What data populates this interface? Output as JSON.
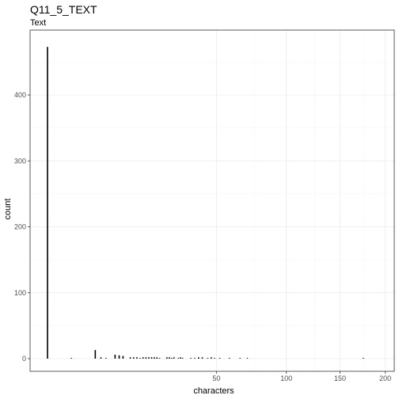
{
  "chart_data": {
    "type": "bar",
    "title": "Q11_5_TEXT",
    "subtitle": "Text",
    "xlabel": "characters",
    "ylabel": "count",
    "x_scale": "sqrt",
    "xlim": [
      0,
      205
    ],
    "ylim": [
      0,
      500
    ],
    "x_ticks": [
      50,
      100,
      150,
      200
    ],
    "y_ticks": [
      0,
      100,
      200,
      300,
      400
    ],
    "grid": true,
    "colors": {
      "panel_border": "#333333",
      "grid_major": "#ebebeb",
      "grid_minor": "#f5f5f5",
      "bar": "#000000",
      "background": "#ffffff"
    },
    "bars": [
      {
        "x": 0,
        "y": 473
      },
      {
        "x": 1,
        "y": 1
      },
      {
        "x": 4,
        "y": 13
      },
      {
        "x": 5,
        "y": 2
      },
      {
        "x": 6,
        "y": 1
      },
      {
        "x": 8,
        "y": 6
      },
      {
        "x": 9,
        "y": 5
      },
      {
        "x": 10,
        "y": 4
      },
      {
        "x": 12,
        "y": 2
      },
      {
        "x": 13,
        "y": 2
      },
      {
        "x": 14,
        "y": 2
      },
      {
        "x": 15,
        "y": 1
      },
      {
        "x": 16,
        "y": 2
      },
      {
        "x": 17,
        "y": 2
      },
      {
        "x": 18,
        "y": 2
      },
      {
        "x": 19,
        "y": 2
      },
      {
        "x": 20,
        "y": 2
      },
      {
        "x": 21,
        "y": 2
      },
      {
        "x": 22,
        "y": 1
      },
      {
        "x": 25,
        "y": 2
      },
      {
        "x": 26,
        "y": 2
      },
      {
        "x": 27,
        "y": 1
      },
      {
        "x": 28,
        "y": 2
      },
      {
        "x": 30,
        "y": 1
      },
      {
        "x": 31,
        "y": 2
      },
      {
        "x": 32,
        "y": 1
      },
      {
        "x": 36,
        "y": 1
      },
      {
        "x": 38,
        "y": 1
      },
      {
        "x": 40,
        "y": 2
      },
      {
        "x": 42,
        "y": 2
      },
      {
        "x": 45,
        "y": 1
      },
      {
        "x": 47,
        "y": 2
      },
      {
        "x": 49,
        "y": 1
      },
      {
        "x": 52,
        "y": 1
      },
      {
        "x": 58,
        "y": 1
      },
      {
        "x": 65,
        "y": 1
      },
      {
        "x": 70,
        "y": 1
      },
      {
        "x": 175,
        "y": 1
      }
    ]
  }
}
